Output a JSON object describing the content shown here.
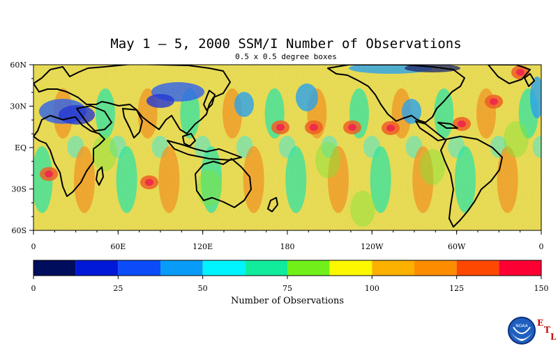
{
  "title": "May 1 – 5, 2000 SSM/I Number of Observations",
  "subtitle": "0.5 x 0.5 degree boxes",
  "map": {
    "lat_ticks": [
      "60N",
      "30N",
      "EQ",
      "30S",
      "60S"
    ],
    "lon_ticks": [
      "0",
      "60E",
      "120E",
      "180",
      "120W",
      "60W",
      "0"
    ]
  },
  "colorbar": {
    "colors": [
      "#000c5c",
      "#0018d8",
      "#0c4cf8",
      "#089cf8",
      "#00f4ff",
      "#10ec9c",
      "#70f018",
      "#fcf800",
      "#fcb000",
      "#fc8c00",
      "#fc4800",
      "#fc0034"
    ],
    "tick_labels": [
      "0",
      "25",
      "50",
      "75",
      "100",
      "125",
      "150"
    ],
    "label": "Number of Observations"
  },
  "logo": {
    "text": "NOAA",
    "letters": [
      "E",
      "T",
      "L"
    ]
  }
}
